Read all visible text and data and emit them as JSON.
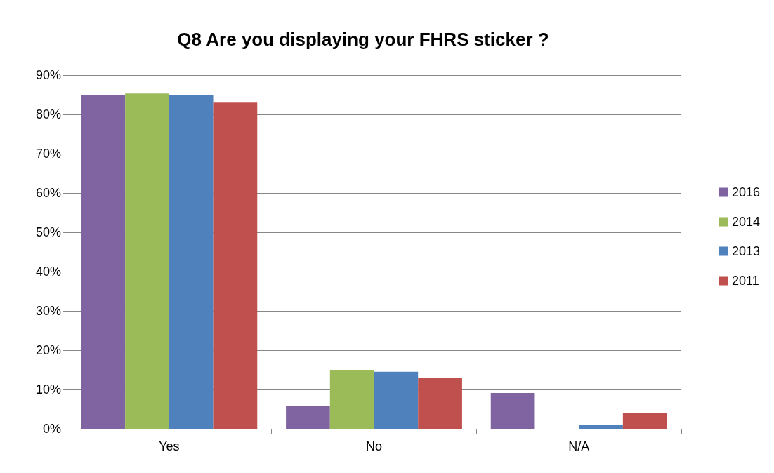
{
  "chart_data": {
    "type": "bar",
    "title": "Q8 Are you displaying your FHRS sticker ?",
    "categories": [
      "Yes",
      "No",
      "N/A"
    ],
    "series": [
      {
        "name": "2016",
        "color": "#8064a2",
        "values": [
          85,
          5.9,
          9.1
        ]
      },
      {
        "name": "2014",
        "color": "#9bbb59",
        "values": [
          85.3,
          15,
          0
        ]
      },
      {
        "name": "2013",
        "color": "#4f81bd",
        "values": [
          85,
          14.5,
          0.9
        ]
      },
      {
        "name": "2011",
        "color": "#c0504d",
        "values": [
          83,
          13,
          4.1
        ]
      }
    ],
    "ylim": [
      0,
      90
    ],
    "yticks": [
      {
        "value": 0,
        "label": "0%"
      },
      {
        "value": 10,
        "label": "10%"
      },
      {
        "value": 20,
        "label": "20%"
      },
      {
        "value": 30,
        "label": "30%"
      },
      {
        "value": 40,
        "label": "40%"
      },
      {
        "value": 50,
        "label": "50%"
      },
      {
        "value": 60,
        "label": "60%"
      },
      {
        "value": 70,
        "label": "70%"
      },
      {
        "value": 80,
        "label": "80%"
      },
      {
        "value": 90,
        "label": "90%"
      }
    ],
    "grid": "y",
    "legend": "right"
  }
}
